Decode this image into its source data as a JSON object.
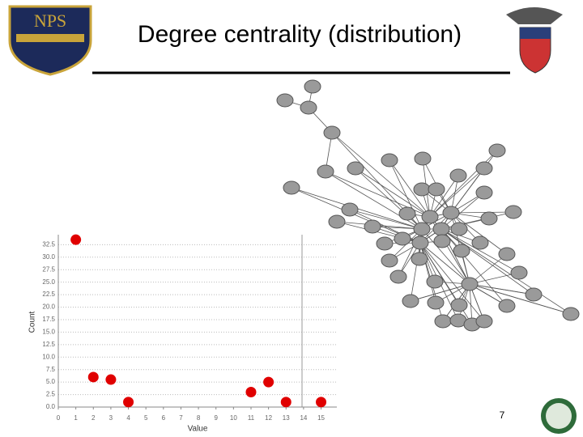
{
  "slide": {
    "title": "Degree centrality (distribution)",
    "page_number": "7",
    "logo_text": "NPS"
  },
  "chart_data": {
    "type": "scatter",
    "x_label": "Value",
    "y_label": "Count",
    "x": [
      1,
      2,
      3,
      4,
      11,
      12,
      13,
      15
    ],
    "values": [
      33.5,
      6,
      5.5,
      1,
      3,
      5,
      1,
      1
    ],
    "color": "#e00000",
    "xlim": [
      0,
      15.9
    ],
    "ylim": [
      0,
      34.5
    ],
    "xticks": [
      0,
      1,
      2,
      3,
      4,
      5,
      6,
      7,
      8,
      9,
      10,
      11,
      12,
      13,
      14,
      15
    ],
    "yticks": [
      {
        "value": 0,
        "label": "0.0"
      },
      2.5,
      {
        "value": 5,
        "label": "5.0"
      },
      7.5,
      {
        "value": 10,
        "label": "10.0"
      },
      12.5,
      {
        "value": 15,
        "label": "15.0"
      },
      17.5,
      {
        "value": 20,
        "label": "20.0"
      },
      22.5,
      {
        "value": 25,
        "label": "25.0"
      },
      27.5,
      {
        "value": 30,
        "label": "30.0"
      },
      32.5
    ],
    "grid": true
  }
}
